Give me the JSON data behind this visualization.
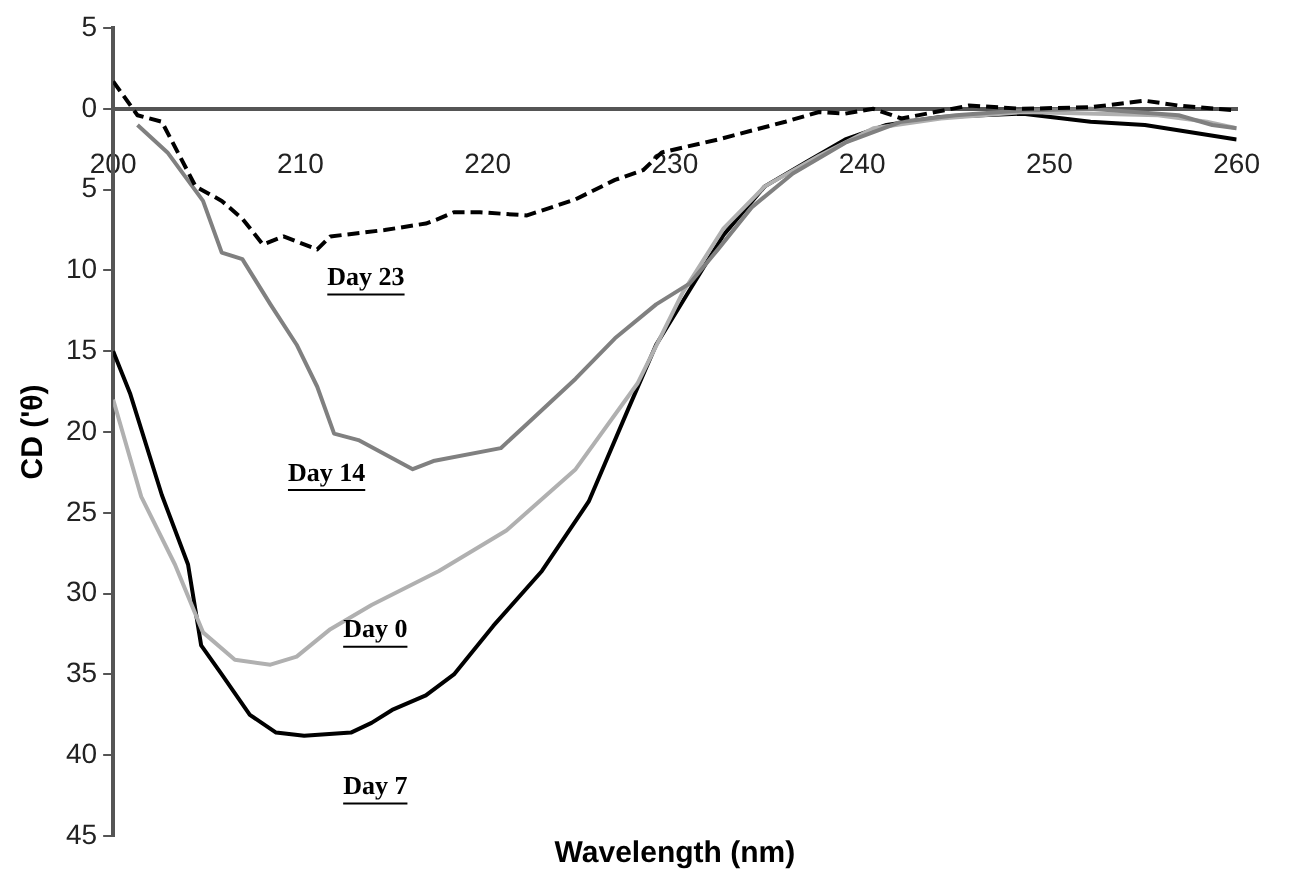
{
  "chart_data": {
    "type": "line",
    "xlabel": "Wavelength (nm)",
    "ylabel": "CD ('θ)",
    "xlim": [
      200,
      260
    ],
    "xticks": [
      200,
      210,
      220,
      230,
      240,
      250,
      260
    ],
    "ylim": [
      -45,
      5
    ],
    "yticks": [
      5,
      0,
      {
        "value": -5,
        "label": "5"
      },
      {
        "value": -10,
        "label": "10"
      },
      {
        "value": -15,
        "label": "15"
      },
      {
        "value": -20,
        "label": "20"
      },
      {
        "value": -25,
        "label": "25"
      },
      {
        "value": -30,
        "label": "30"
      },
      {
        "value": -35,
        "label": "35"
      },
      {
        "value": -40,
        "label": "40"
      },
      {
        "value": -45,
        "label": "45"
      }
    ],
    "grid": false,
    "legend": false,
    "marker": "none",
    "series": [
      {
        "name": "Day 23",
        "color": "#000000",
        "line_style": "dashed",
        "x": [
          200,
          201.3,
          202.6,
          204.4,
          205.8,
          206.9,
          208,
          209.1,
          210.9,
          211.6,
          214.5,
          216.7,
          217.4,
          218.2,
          219.6,
          222.1,
          224.7,
          226.8,
          228.3,
          229.3,
          232.3,
          235.9,
          237.7,
          239.1,
          240.6,
          242.1,
          243.9,
          245.7,
          248.6,
          252.2,
          255.1,
          256.9,
          260
        ],
        "values": [
          1.7,
          -0.4,
          -0.8,
          -4.8,
          -5.7,
          -6.8,
          -8.4,
          -7.9,
          -8.7,
          -7.9,
          -7.5,
          -7.1,
          -6.8,
          -6.4,
          -6.4,
          -6.6,
          -5.6,
          -4.4,
          -3.8,
          -2.7,
          -1.9,
          -0.8,
          -0.2,
          -0.3,
          0,
          -0.6,
          -0.2,
          0.2,
          0,
          0.1,
          0.5,
          0.2,
          -0.1
        ]
      },
      {
        "name": "Day 14",
        "color": "#808080",
        "line_style": "solid",
        "x": [
          201.3,
          202.9,
          204.8,
          205.8,
          206.9,
          208.4,
          209.8,
          210.9,
          211.8,
          213.1,
          216,
          217.1,
          220.7,
          222.1,
          224.7,
          226.8,
          229,
          230.8,
          232.3,
          234.1,
          236.3,
          239.1,
          242.1,
          245,
          248.6,
          252.2,
          256.9,
          258.7,
          260
        ],
        "values": [
          -1,
          -2.7,
          -5.7,
          -8.9,
          -9.3,
          -12.1,
          -14.6,
          -17.2,
          -20.1,
          -20.5,
          -22.3,
          -21.8,
          -21,
          -19.5,
          -16.7,
          -14.2,
          -12.1,
          -10.8,
          -8.7,
          -6.1,
          -4,
          -2.1,
          -0.8,
          -0.4,
          -0.1,
          0,
          -0.4,
          -1,
          -1.2
        ]
      },
      {
        "name": "Day 0",
        "color": "#b0b0b0",
        "line_style": "solid",
        "x": [
          200,
          201.5,
          203.3,
          204.8,
          206.5,
          208.4,
          209.8,
          211.6,
          213.8,
          217.4,
          221,
          224.7,
          228,
          230.4,
          232.6,
          234.8,
          237.7,
          240.6,
          244.2,
          248.6,
          255.8,
          258.4,
          260
        ],
        "values": [
          -18,
          -24,
          -28.2,
          -32.4,
          -34.1,
          -34.4,
          -33.9,
          -32.2,
          -30.7,
          -28.6,
          -26.1,
          -22.3,
          -17,
          -11.4,
          -7.4,
          -4.8,
          -2.9,
          -1.2,
          -0.6,
          -0.2,
          -0.4,
          -0.8,
          -1.2
        ]
      },
      {
        "name": "Day 7",
        "color": "#000000",
        "line_style": "solid",
        "x": [
          200,
          200.9,
          202.6,
          204,
          204.7,
          205.8,
          207.3,
          208.7,
          210.2,
          212.7,
          213.8,
          214.9,
          216.7,
          218.2,
          220.3,
          222.9,
          225.4,
          227.5,
          229,
          230.8,
          232.6,
          234.8,
          237,
          239.1,
          241.3,
          244.2,
          248.6,
          252.2,
          255.1,
          257.3,
          260
        ],
        "values": [
          -15,
          -17.6,
          -23.9,
          -28.2,
          -33.2,
          -35,
          -37.5,
          -38.6,
          -38.8,
          -38.6,
          -38,
          -37.2,
          -36.3,
          -35,
          -32,
          -28.6,
          -24.3,
          -18.6,
          -14.6,
          -11.2,
          -7.8,
          -4.8,
          -3.3,
          -1.9,
          -1,
          -0.5,
          -0.3,
          -0.8,
          -1,
          -1.4,
          -1.9
        ]
      }
    ]
  }
}
